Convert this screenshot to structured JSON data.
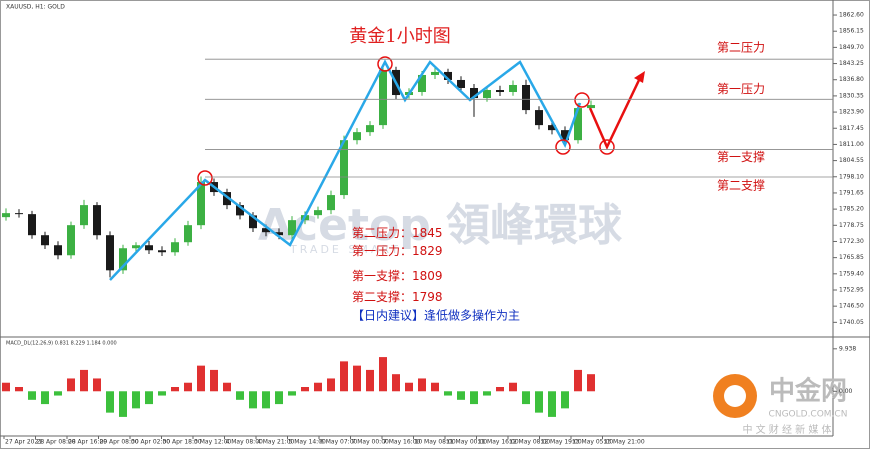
{
  "chart_data": {
    "type": "candlestick",
    "symbol": "XAUUSD, H1: GOLD",
    "title": "黄金1小时图",
    "up_color": "#3cb043",
    "down_color": "#1a1a1a",
    "ylim": [
      1735,
      1867
    ],
    "yticks": [
      {
        "value": 1862.6,
        "label": "1862.60"
      },
      {
        "value": 1856.15,
        "label": "1856.15"
      },
      {
        "value": 1849.7,
        "label": "1849.70"
      },
      {
        "value": 1843.25,
        "label": "1843.25"
      },
      {
        "value": 1836.8,
        "label": "1836.80"
      },
      {
        "value": 1830.35,
        "label": "1830.35"
      },
      {
        "value": 1823.9,
        "label": "1823.90"
      },
      {
        "value": 1817.45,
        "label": "1817.45"
      },
      {
        "value": 1811,
        "label": "1811.00"
      },
      {
        "value": 1804.55,
        "label": "1804.55"
      },
      {
        "value": 1798.1,
        "label": "1798.10"
      },
      {
        "value": 1791.65,
        "label": "1791.65"
      },
      {
        "value": 1785.2,
        "label": "1785.20"
      },
      {
        "value": 1778.75,
        "label": "1778.75"
      },
      {
        "value": 1772.3,
        "label": "1772.30"
      },
      {
        "value": 1765.85,
        "label": "1765.85"
      },
      {
        "value": 1759.4,
        "label": "1759.40"
      },
      {
        "value": 1752.95,
        "label": "1752.95"
      },
      {
        "value": 1746.5,
        "label": "1746.50"
      },
      {
        "value": 1740.05,
        "label": "1740.05"
      }
    ],
    "x_labels": [
      "27 Apr 2021",
      "28 Apr 08:00",
      "28 Apr 16:00",
      "29 Apr 08:00",
      "30 Apr 02:00",
      "30 Apr 18:00",
      "3 May 12:00",
      "4 May 08:00",
      "4 May 21:00",
      "5 May 14:00",
      "6 May 07:00",
      "7 May 00:00",
      "7 May 16:00",
      "10 May 08:00",
      "11 May 00:00",
      "11 May 16:00",
      "12 May 08:00",
      "12 May 19:00",
      "13 May 05:00",
      "13 May 21:00"
    ],
    "open": [
      1782.0,
      1783.6,
      1783.2,
      1774.8,
      1770.8,
      1766.8,
      1778.8,
      1786.8,
      1774.8,
      1760.8,
      1769.6,
      1770.8,
      1768.8,
      1768.0,
      1772.0,
      1778.8,
      1796.0,
      1792.0,
      1786.8,
      1782.7,
      1777.6,
      1776.0,
      1774.8,
      1780.8,
      1782.8,
      1784.8,
      1790.8,
      1812.7,
      1815.9,
      1818.7,
      1840.7,
      1830.7,
      1831.9,
      1838.7,
      1839.9,
      1836.7,
      1833.5,
      1829.5,
      1832.7,
      1831.9,
      1834.7,
      1824.7,
      1818.7,
      1816.7,
      1812.7,
      1825.5
    ],
    "high": [
      1785.5,
      1785.2,
      1784.5,
      1776.2,
      1772.4,
      1780.2,
      1788.9,
      1788.0,
      1776.3,
      1771.0,
      1772.0,
      1772.5,
      1770.4,
      1773.6,
      1780.5,
      1798.2,
      1797.4,
      1793.3,
      1788.0,
      1784.0,
      1779.0,
      1777.5,
      1782.4,
      1784.3,
      1786.2,
      1792.6,
      1814.5,
      1817.5,
      1820.3,
      1843.0,
      1842.0,
      1833.4,
      1840.3,
      1841.6,
      1841.2,
      1838.2,
      1835.1,
      1834.3,
      1834.4,
      1836.5,
      1836.8,
      1826.2,
      1820.3,
      1818.2,
      1827.4,
      1828.5
    ],
    "low": [
      1780.6,
      1781.8,
      1773.4,
      1769.3,
      1765.2,
      1765.4,
      1777.3,
      1773.1,
      1758.0,
      1759.4,
      1768.0,
      1767.3,
      1766.5,
      1766.6,
      1770.6,
      1777.2,
      1790.5,
      1785.2,
      1781.1,
      1776.1,
      1774.4,
      1773.2,
      1773.3,
      1779.2,
      1781.4,
      1783.2,
      1789.3,
      1811.0,
      1814.4,
      1817.2,
      1829.0,
      1829.2,
      1830.4,
      1837.1,
      1835.1,
      1832.1,
      1822.0,
      1828.0,
      1830.3,
      1830.4,
      1823.1,
      1817.0,
      1815.0,
      1810.5,
      1811.3,
      1824.0
    ],
    "close": [
      1783.6,
      1783.2,
      1774.8,
      1770.8,
      1766.8,
      1778.8,
      1786.8,
      1774.8,
      1760.8,
      1769.6,
      1770.8,
      1768.8,
      1768.0,
      1772.0,
      1778.8,
      1796.0,
      1792.0,
      1786.8,
      1782.7,
      1777.6,
      1776.0,
      1774.8,
      1780.8,
      1782.8,
      1784.8,
      1790.8,
      1812.7,
      1815.9,
      1818.7,
      1840.7,
      1830.7,
      1831.9,
      1838.7,
      1839.9,
      1836.7,
      1833.5,
      1829.5,
      1832.7,
      1831.9,
      1834.7,
      1824.7,
      1818.7,
      1816.7,
      1812.7,
      1825.5,
      1826.7
    ],
    "levels": [
      {
        "name": "第二压力",
        "label": "第二压力：",
        "value": 1845
      },
      {
        "name": "第一压力",
        "label": "第一压力：",
        "value": 1829
      },
      {
        "name": "第一支撑",
        "label": "第一支撑：",
        "value": 1809
      },
      {
        "name": "第二支撑",
        "label": "第二支撑：",
        "value": 1798
      }
    ],
    "advice": "【日内建议】逢低做多操作为主",
    "macd": {
      "title": "MACD_DL(12,26,9) 0.831 8.229 1.184 0.000",
      "ylim": [
        -10,
        12
      ],
      "yticks": [
        {
          "value": 9.938,
          "label": "9.938"
        },
        {
          "value": 0,
          "label": "0.00"
        }
      ],
      "pos_color": "#e03030",
      "neg_color": "#3cc03c",
      "values": [
        2,
        1,
        -2,
        -3,
        -1,
        3,
        5,
        3,
        -5,
        -6,
        -4,
        -3,
        -1,
        1,
        2,
        6,
        5,
        2,
        -2,
        -4,
        -4,
        -3,
        -1,
        1,
        2,
        3,
        7,
        6,
        5,
        8,
        4,
        2,
        3,
        2,
        -1,
        -2,
        -3,
        -1,
        1,
        2,
        -3,
        -5,
        -6,
        -4,
        5,
        4
      ]
    },
    "watermark": {
      "brand": "Acetop 領峰環球",
      "slogan": "TRADE SMART"
    },
    "logo": {
      "name": "中金网",
      "site": "CNGOLD.COM.CN",
      "tagline": "中 文 财 经 新 媒 体"
    }
  }
}
